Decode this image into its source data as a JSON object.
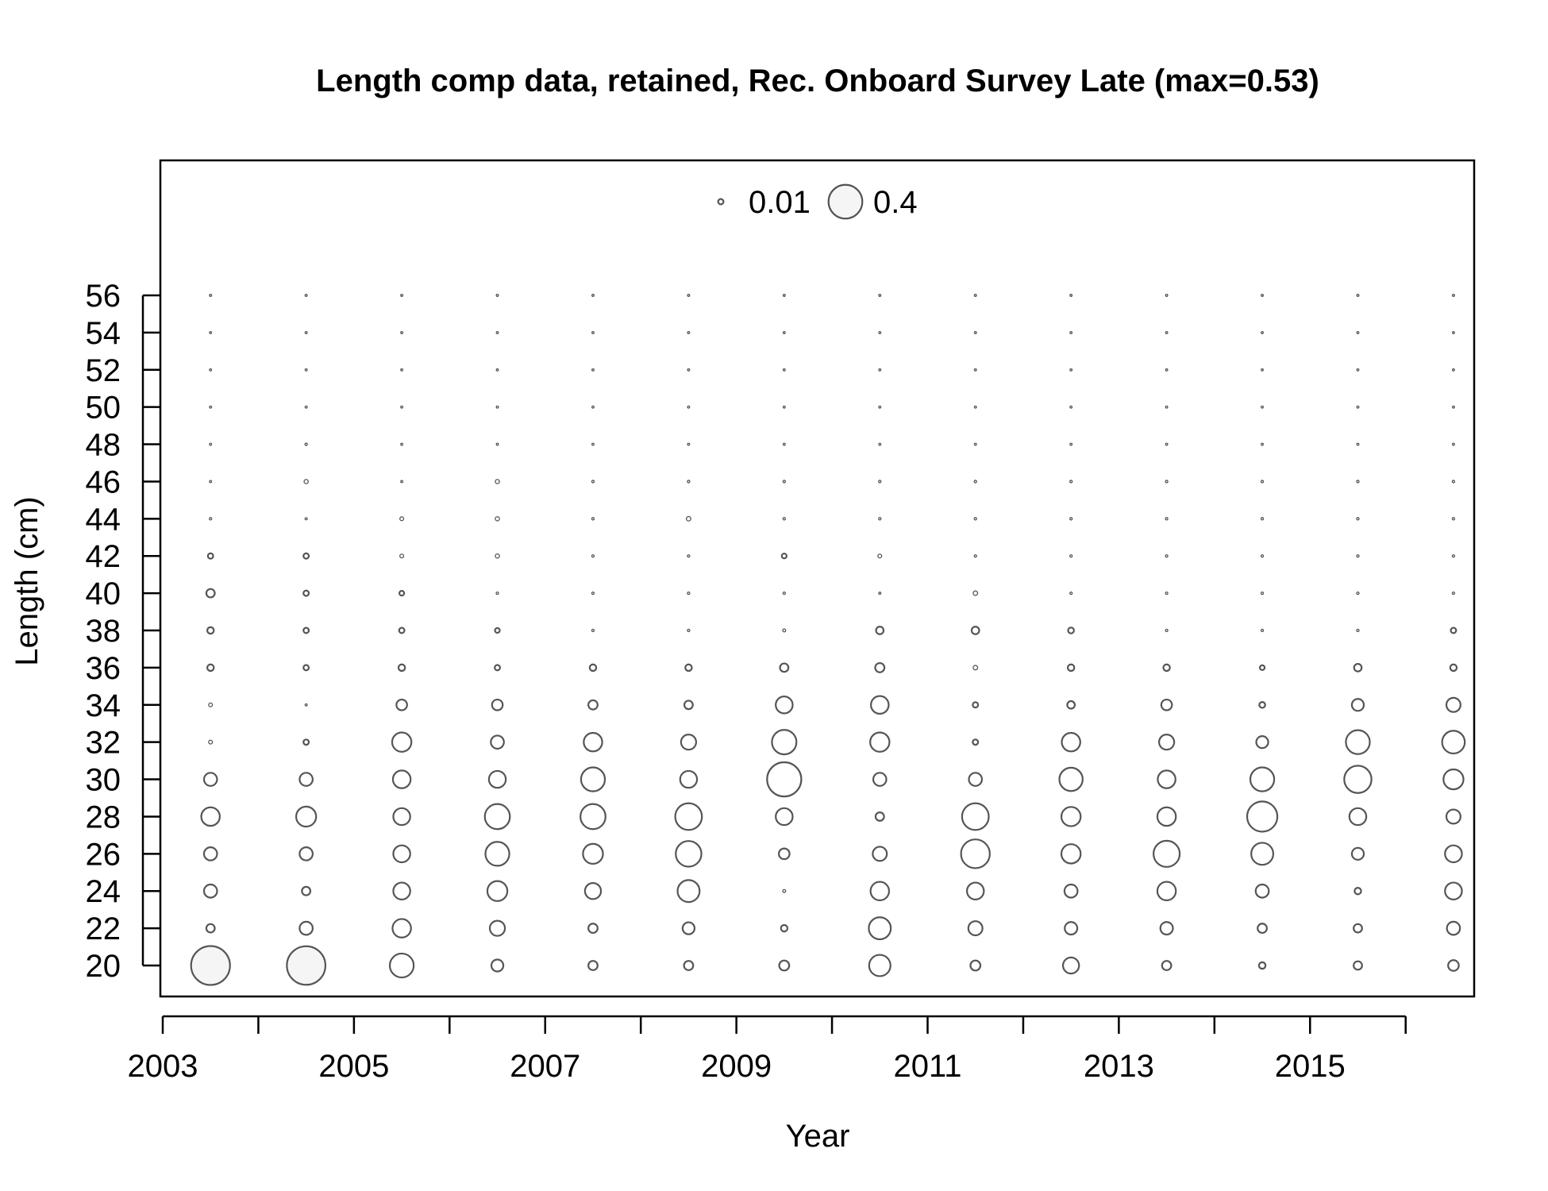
{
  "chart_data": {
    "type": "bubble",
    "title": "Length comp data, retained, Rec. Onboard Survey Late (max=0.53)",
    "xlabel": "Year",
    "ylabel": "Length (cm)",
    "xlim": [
      2003,
      2016.7
    ],
    "ylim": [
      18.3,
      63.5
    ],
    "x_ticks": [
      2003,
      2004,
      2005,
      2006,
      2007,
      2008,
      2009,
      2010,
      2011,
      2012,
      2013,
      2014,
      2015,
      2016
    ],
    "x_tick_labels": [
      "2003",
      "2005",
      "2007",
      "2009",
      "2011",
      "2013",
      "2015"
    ],
    "y_ticks": [
      20,
      22,
      24,
      26,
      28,
      30,
      32,
      34,
      36,
      38,
      40,
      42,
      44,
      46,
      48,
      50,
      52,
      54,
      56
    ],
    "max_value": 0.53,
    "legend": {
      "placement": "top",
      "entries": [
        {
          "label": "0.01",
          "value": 0.01
        },
        {
          "label": "0.4",
          "value": 0.4
        }
      ]
    },
    "colors": {
      "stroke": "#555555",
      "axis": "#000000",
      "legend_fill": "#f5f5f5"
    },
    "years": [
      2003.5,
      2004.5,
      2005.5,
      2006.5,
      2007.5,
      2008.5,
      2009.5,
      2010.5,
      2011.5,
      2012.5,
      2013.5,
      2014.5,
      2015.5,
      2016.5
    ],
    "lengths": [
      20,
      22,
      24,
      26,
      28,
      30,
      32,
      34,
      36,
      38,
      40,
      42,
      44,
      46,
      48,
      50,
      52,
      54,
      56
    ],
    "proportions": [
      [
        0.53,
        0.025,
        0.06,
        0.06,
        0.12,
        0.06,
        0.005,
        0.005,
        0.015,
        0.015,
        0.025,
        0.01,
        0.002,
        0.001,
        0.001,
        0.001,
        0.001,
        0.001,
        0.001
      ],
      [
        0.52,
        0.06,
        0.025,
        0.06,
        0.14,
        0.06,
        0.01,
        0.001,
        0.01,
        0.01,
        0.01,
        0.01,
        0.001,
        0.006,
        0.002,
        0.001,
        0.001,
        0.001,
        0.001
      ],
      [
        0.2,
        0.12,
        0.1,
        0.1,
        0.1,
        0.11,
        0.13,
        0.04,
        0.015,
        0.01,
        0.008,
        0.005,
        0.005,
        0.001,
        0.001,
        0.001,
        0.001,
        0.001,
        0.001
      ],
      [
        0.05,
        0.08,
        0.14,
        0.2,
        0.22,
        0.1,
        0.06,
        0.04,
        0.01,
        0.008,
        0.002,
        0.006,
        0.006,
        0.006,
        0.001,
        0.001,
        0.001,
        0.001,
        0.001
      ],
      [
        0.03,
        0.03,
        0.09,
        0.14,
        0.22,
        0.2,
        0.12,
        0.03,
        0.015,
        0.002,
        0.002,
        0.002,
        0.002,
        0.002,
        0.001,
        0.001,
        0.001,
        0.001,
        0.001
      ],
      [
        0.03,
        0.05,
        0.17,
        0.23,
        0.25,
        0.1,
        0.08,
        0.025,
        0.015,
        0.002,
        0.002,
        0.002,
        0.007,
        0.002,
        0.001,
        0.001,
        0.001,
        0.001,
        0.001
      ],
      [
        0.035,
        0.015,
        0.003,
        0.04,
        0.1,
        0.41,
        0.21,
        0.1,
        0.025,
        0.003,
        0.002,
        0.008,
        0.002,
        0.002,
        0.001,
        0.001,
        0.001,
        0.001,
        0.001
      ],
      [
        0.16,
        0.17,
        0.12,
        0.07,
        0.025,
        0.06,
        0.13,
        0.11,
        0.03,
        0.02,
        0.001,
        0.005,
        0.002,
        0.002,
        0.001,
        0.001,
        0.001,
        0.001,
        0.001
      ],
      [
        0.035,
        0.07,
        0.1,
        0.29,
        0.25,
        0.06,
        0.01,
        0.01,
        0.007,
        0.02,
        0.007,
        0.002,
        0.002,
        0.002,
        0.001,
        0.001,
        0.001,
        0.001,
        0.001
      ],
      [
        0.09,
        0.055,
        0.06,
        0.13,
        0.13,
        0.19,
        0.12,
        0.02,
        0.015,
        0.012,
        0.002,
        0.002,
        0.002,
        0.002,
        0.001,
        0.001,
        0.001,
        0.001,
        0.001
      ],
      [
        0.03,
        0.055,
        0.12,
        0.24,
        0.12,
        0.11,
        0.08,
        0.04,
        0.015,
        0.002,
        0.002,
        0.002,
        0.002,
        0.002,
        0.001,
        0.001,
        0.001,
        0.001,
        0.001
      ],
      [
        0.015,
        0.03,
        0.06,
        0.17,
        0.32,
        0.2,
        0.05,
        0.012,
        0.008,
        0.002,
        0.002,
        0.002,
        0.002,
        0.002,
        0.001,
        0.001,
        0.001,
        0.001,
        0.001
      ],
      [
        0.025,
        0.025,
        0.015,
        0.05,
        0.1,
        0.26,
        0.2,
        0.05,
        0.02,
        0.002,
        0.002,
        0.002,
        0.002,
        0.002,
        0.001,
        0.001,
        0.001,
        0.001,
        0.001
      ],
      [
        0.04,
        0.06,
        0.1,
        0.1,
        0.07,
        0.14,
        0.18,
        0.07,
        0.015,
        0.01,
        0.002,
        0.002,
        0.002,
        0.002,
        0.001,
        0.001,
        0.001,
        0.001,
        0.001
      ]
    ]
  }
}
